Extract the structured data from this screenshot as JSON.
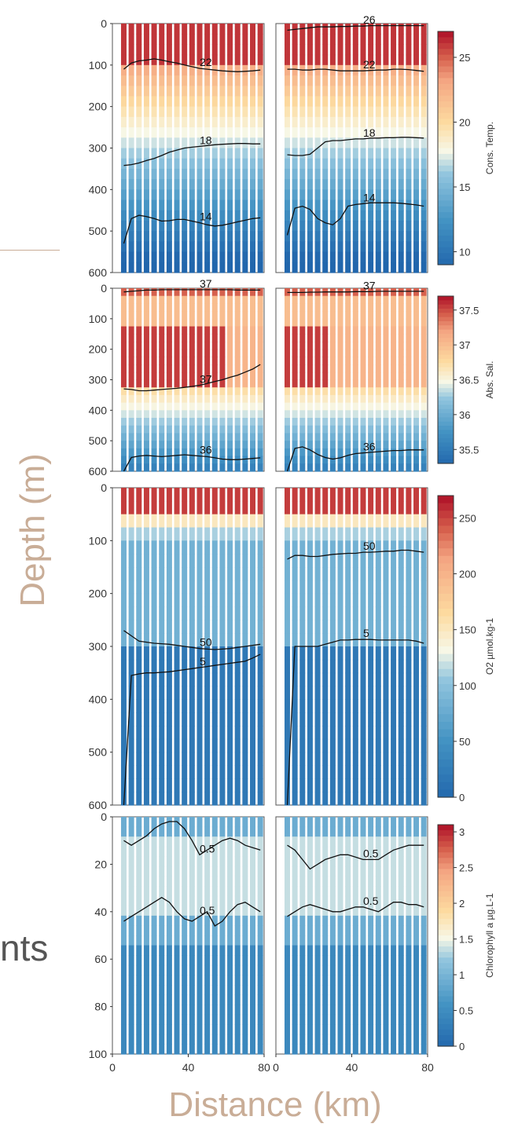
{
  "figure": {
    "ylabel": "Depth (m)",
    "xlabel": "Distance (km)",
    "stray_text": "nts"
  },
  "chart_data": [
    {
      "type": "heatmap",
      "variable_label": "Cons. Temp.",
      "colorbar_ticks": [
        10,
        15,
        20,
        25
      ],
      "colorbar_range": [
        9,
        27
      ],
      "ylim": [
        0,
        600
      ],
      "yticks": [
        0,
        100,
        200,
        300,
        400,
        500,
        600
      ],
      "xlim": [
        0,
        80
      ],
      "x_columns": [
        6,
        10,
        14,
        18,
        22,
        26,
        30,
        34,
        38,
        42,
        46,
        50,
        54,
        58,
        62,
        66,
        70,
        74,
        78
      ],
      "transects": [
        {
          "name": "left",
          "contours": [
            {
              "label": "22",
              "depths": [
                110,
                95,
                90,
                88,
                85,
                88,
                92,
                95,
                100,
                104,
                108,
                110,
                112,
                114,
                115,
                116,
                115,
                114,
                112
              ]
            },
            {
              "label": "18",
              "depths": [
                342,
                340,
                336,
                330,
                325,
                318,
                310,
                305,
                300,
                298,
                296,
                294,
                292,
                291,
                290,
                289,
                289,
                290,
                290
              ]
            },
            {
              "label": "14",
              "depths": [
                530,
                470,
                462,
                465,
                470,
                476,
                475,
                472,
                472,
                476,
                480,
                485,
                488,
                486,
                482,
                478,
                474,
                470,
                468
              ]
            }
          ]
        },
        {
          "name": "right",
          "contours": [
            {
              "label": "26",
              "depths": [
                16,
                14,
                12,
                10,
                8,
                8,
                8,
                7,
                7,
                6,
                6,
                5,
                5,
                5,
                5,
                5,
                5,
                5,
                5
              ]
            },
            {
              "label": "22",
              "depths": [
                110,
                110,
                112,
                112,
                110,
                110,
                112,
                114,
                114,
                114,
                114,
                113,
                112,
                112,
                110,
                110,
                111,
                113,
                115
              ]
            },
            {
              "label": "18",
              "depths": [
                316,
                318,
                318,
                315,
                300,
                285,
                282,
                282,
                280,
                278,
                278,
                276,
                276,
                275,
                275,
                274,
                274,
                275,
                276
              ]
            },
            {
              "label": "14",
              "depths": [
                510,
                445,
                440,
                448,
                470,
                480,
                485,
                470,
                440,
                436,
                434,
                432,
                432,
                432,
                432,
                433,
                435,
                437,
                440
              ]
            }
          ]
        }
      ]
    },
    {
      "type": "heatmap",
      "variable_label": "Abs. Sal.",
      "colorbar_ticks": [
        35.5,
        36,
        36.5,
        37,
        37.5
      ],
      "colorbar_range": [
        35.3,
        37.7
      ],
      "ylim": [
        0,
        600
      ],
      "yticks": [
        0,
        100,
        200,
        300,
        400,
        500,
        600
      ],
      "xlim": [
        0,
        80
      ],
      "x_columns": [
        6,
        10,
        14,
        18,
        22,
        26,
        30,
        34,
        38,
        42,
        46,
        50,
        54,
        58,
        62,
        66,
        70,
        74,
        78
      ],
      "transects": [
        {
          "name": "left",
          "contours": [
            {
              "label": "37",
              "depths": [
                12,
                10,
                8,
                6,
                6,
                5,
                5,
                5,
                5,
                5,
                5,
                5,
                5,
                5,
                5,
                6,
                6,
                6,
                6
              ]
            },
            {
              "label": "37",
              "depths": [
                330,
                332,
                336,
                336,
                334,
                332,
                330,
                328,
                325,
                322,
                318,
                312,
                306,
                300,
                292,
                285,
                275,
                265,
                250
              ]
            },
            {
              "label": "36",
              "depths": [
                600,
                555,
                550,
                548,
                550,
                552,
                550,
                548,
                546,
                548,
                550,
                552,
                556,
                560,
                562,
                562,
                560,
                558,
                556
              ]
            }
          ]
        },
        {
          "name": "right",
          "contours": [
            {
              "label": "37",
              "depths": [
                14,
                14,
                14,
                13,
                13,
                12,
                12,
                12,
                12,
                11,
                11,
                11,
                10,
                10,
                10,
                10,
                10,
                10,
                10
              ]
            },
            {
              "label": "36",
              "depths": [
                600,
                525,
                520,
                530,
                545,
                555,
                560,
                556,
                548,
                542,
                540,
                538,
                536,
                534,
                532,
                532,
                530,
                530,
                530
              ]
            }
          ]
        }
      ]
    },
    {
      "type": "heatmap",
      "variable_label": "O2 µmol.kg-1",
      "colorbar_ticks": [
        0,
        50,
        100,
        150,
        200,
        250
      ],
      "colorbar_range": [
        0,
        270
      ],
      "ylim": [
        0,
        600
      ],
      "yticks": [
        0,
        100,
        200,
        300,
        400,
        500,
        600
      ],
      "xlim": [
        0,
        80
      ],
      "x_columns": [
        6,
        10,
        14,
        18,
        22,
        26,
        30,
        34,
        38,
        42,
        46,
        50,
        54,
        58,
        62,
        66,
        70,
        74,
        78
      ],
      "transects": [
        {
          "name": "left",
          "contours": [
            {
              "label": "50",
              "depths": [
                270,
                280,
                290,
                292,
                294,
                295,
                296,
                298,
                300,
                302,
                304,
                305,
                306,
                305,
                304,
                302,
                300,
                298,
                296
              ]
            },
            {
              "label": "5",
              "depths": [
                600,
                355,
                352,
                350,
                350,
                349,
                348,
                346,
                344,
                342,
                340,
                338,
                336,
                334,
                332,
                330,
                328,
                322,
                315
              ]
            }
          ]
        },
        {
          "name": "right",
          "contours": [
            {
              "label": "50",
              "depths": [
                135,
                128,
                128,
                130,
                130,
                128,
                126,
                125,
                124,
                124,
                122,
                122,
                121,
                120,
                120,
                118,
                118,
                120,
                122
              ]
            },
            {
              "label": "5",
              "depths": [
                600,
                300,
                300,
                300,
                300,
                296,
                292,
                288,
                288,
                287,
                287,
                287,
                288,
                288,
                288,
                288,
                288,
                290,
                294
              ]
            }
          ]
        }
      ]
    },
    {
      "type": "heatmap",
      "variable_label": "Chlorophyll a µg.L-1",
      "colorbar_ticks": [
        0,
        0.5,
        1,
        1.5,
        2,
        2.5,
        3
      ],
      "colorbar_range": [
        0,
        3.1
      ],
      "ylim": [
        0,
        100
      ],
      "yticks": [
        0,
        20,
        40,
        60,
        80,
        100
      ],
      "xticks": [
        0,
        40,
        80
      ],
      "xlim": [
        0,
        80
      ],
      "x_columns": [
        6,
        10,
        14,
        18,
        22,
        26,
        30,
        34,
        38,
        42,
        46,
        50,
        54,
        58,
        62,
        66,
        70,
        74,
        78
      ],
      "transects": [
        {
          "name": "left",
          "contours": [
            {
              "label": "0.5",
              "depths": [
                10,
                12,
                10,
                8,
                5,
                3,
                2,
                2,
                5,
                10,
                16,
                14,
                12,
                10,
                9,
                10,
                12,
                13,
                14
              ]
            },
            {
              "label": "0.5",
              "depths": [
                44,
                42,
                40,
                38,
                36,
                34,
                36,
                40,
                43,
                44,
                42,
                40,
                46,
                44,
                40,
                37,
                36,
                38,
                40
              ]
            }
          ]
        },
        {
          "name": "right",
          "contours": [
            {
              "label": "0.5",
              "depths": [
                12,
                14,
                18,
                22,
                20,
                18,
                17,
                16,
                16,
                17,
                18,
                18,
                18,
                16,
                14,
                13,
                12,
                12,
                12
              ]
            },
            {
              "label": "0.5",
              "depths": [
                42,
                40,
                38,
                37,
                38,
                39,
                40,
                40,
                39,
                38,
                38,
                39,
                40,
                38,
                36,
                36,
                37,
                37,
                38
              ]
            }
          ]
        }
      ]
    }
  ]
}
